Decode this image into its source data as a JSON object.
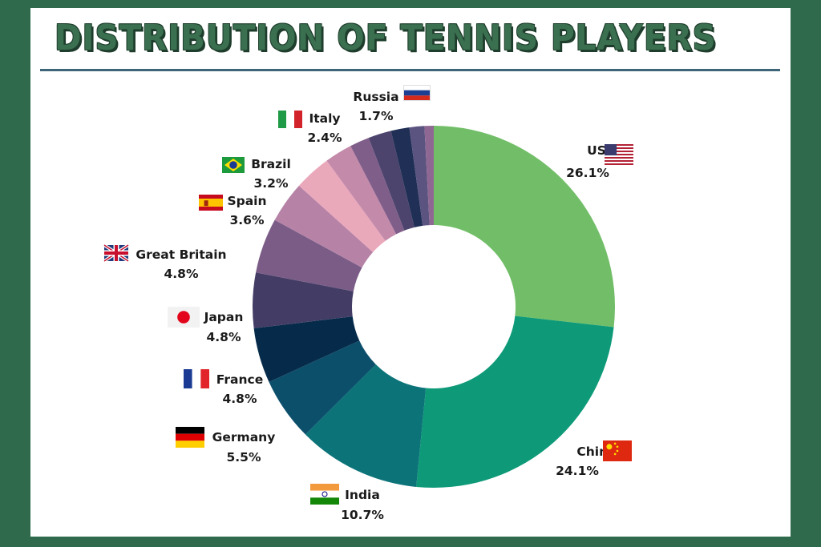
{
  "chart_data": {
    "type": "pie",
    "donut": true,
    "title": "DISTRIBUTION OF TENNIS PLAYERS",
    "categories": [
      "US",
      "China",
      "India",
      "Germany",
      "France",
      "Japan",
      "Great Britain",
      "Spain",
      "Brazil",
      "Italy",
      "Russia"
    ],
    "values": [
      26.1,
      24.1,
      10.7,
      5.5,
      4.8,
      4.8,
      4.8,
      3.6,
      3.2,
      2.4,
      1.7
    ],
    "value_labels": [
      "26.1%",
      "24.1%",
      "10.7%",
      "5.5%",
      "4.8%",
      "4.8%",
      "4.8%",
      "3.6%",
      "3.2%",
      "2.4%",
      "1.7%"
    ],
    "unlabeled_slices": [
      2.0,
      1.6,
      1.3,
      0.8
    ],
    "colors": [
      "#72be68",
      "#0e9a78",
      "#0c7479",
      "#0c4f6b",
      "#062b4a",
      "#433d66",
      "#7a5c86",
      "#b683a7",
      "#eaa8bb",
      "#c38aaa",
      "#805e8a",
      "#4c446d",
      "#1f2f55",
      "#5b5380",
      "#8e6893",
      "#c08cae"
    ],
    "flags": [
      "us-flag-icon",
      "china-flag-icon",
      "india-flag-icon",
      "germany-flag-icon",
      "france-flag-icon",
      "japan-flag-icon",
      "great-britain-flag-icon",
      "spain-flag-icon",
      "brazil-flag-icon",
      "italy-flag-icon",
      "russia-flag-icon"
    ]
  }
}
